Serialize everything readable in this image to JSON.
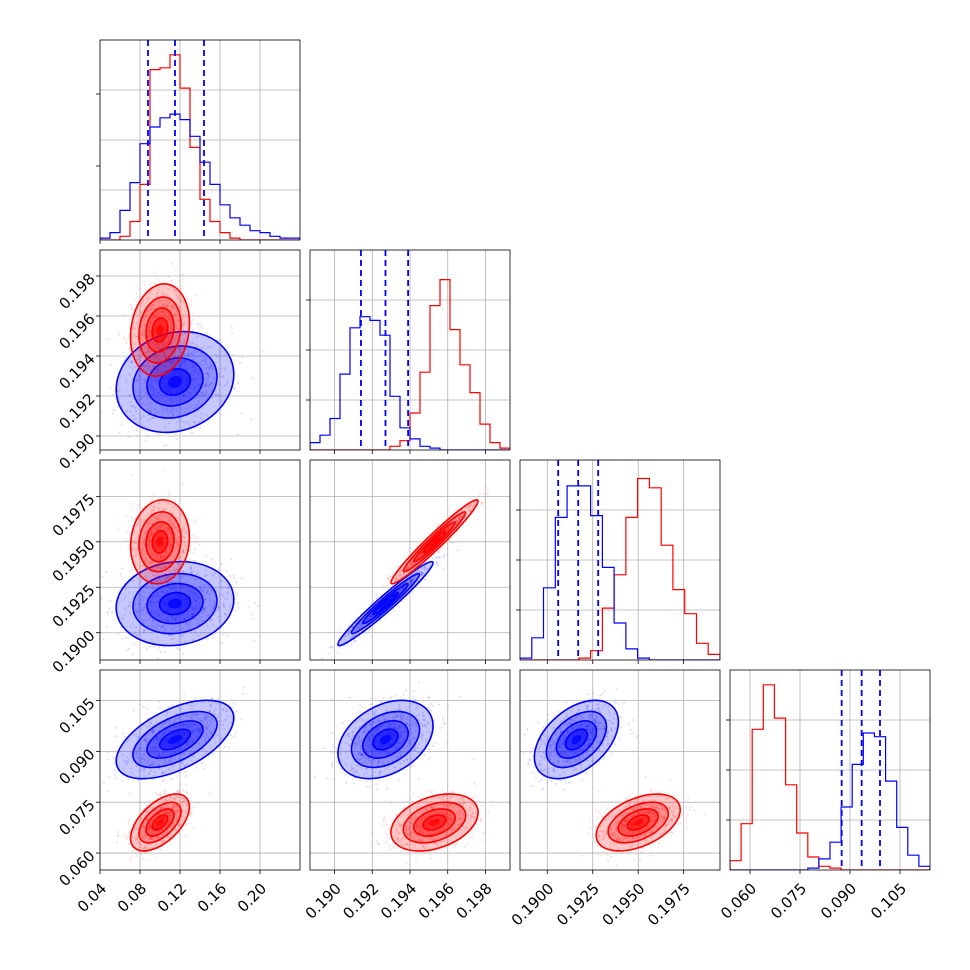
{
  "colors": {
    "series_a": "#ff0000",
    "series_b": "#0000ff",
    "grid": "#b0b0b0",
    "frame": "#000000"
  },
  "chart_data": {
    "type": "corner",
    "grid": true,
    "parameters": [
      {
        "xlim": [
          0.04,
          0.24
        ],
        "ylim": null,
        "ticks": [
          0.04,
          0.08,
          0.12,
          0.16,
          0.2
        ],
        "tick_labels": [
          "0.04",
          "0.08",
          "0.12",
          "0.16",
          "0.20"
        ]
      },
      {
        "xlim": [
          0.1887,
          0.1993
        ],
        "ylim": [
          0.1893,
          0.1993
        ],
        "ticks": [
          0.19,
          0.192,
          0.194,
          0.196,
          0.198
        ],
        "tick_labels": [
          "0.190",
          "0.192",
          "0.194",
          "0.196",
          "0.198"
        ]
      },
      {
        "xlim": [
          0.1885,
          0.1995
        ],
        "ylim": [
          0.1885,
          0.1995
        ],
        "ticks": [
          0.19,
          0.1925,
          0.195,
          0.1975
        ],
        "tick_labels": [
          "0.1900",
          "0.1925",
          "0.1950",
          "0.1975"
        ]
      },
      {
        "xlim": [
          0.054,
          0.114
        ],
        "ylim": [
          0.055,
          0.114
        ],
        "ticks": [
          0.06,
          0.075,
          0.09,
          0.105
        ],
        "tick_labels": [
          "0.060",
          "0.075",
          "0.090",
          "0.105"
        ]
      }
    ],
    "series": [
      {
        "color": "#0000ff",
        "mean": [
          0.115,
          0.1927,
          0.1916,
          0.0935
        ],
        "sigma": [
          0.028,
          0.0012,
          0.0011,
          0.0055
        ],
        "quantiles": [
          [
            0.088,
            0.115,
            0.144
          ],
          [
            0.1914,
            0.1927,
            0.1939
          ],
          [
            0.1906,
            0.1917,
            0.1928
          ],
          [
            0.0875,
            0.0935,
            0.099
          ]
        ]
      },
      {
        "color": "#ff0000",
        "mean": [
          0.1,
          0.1953,
          0.195,
          0.069
        ],
        "sigma": [
          0.014,
          0.0011,
          0.0011,
          0.004
        ]
      }
    ],
    "histograms": {
      "0": {
        "red": [
          0,
          0,
          0.02,
          0.1,
          0.3,
          0.92,
          0.93,
          1.0,
          0.82,
          0.5,
          0.22,
          0.1,
          0.04,
          0.01,
          0,
          0,
          0,
          0,
          0,
          0
        ],
        "blue": [
          0.01,
          0.04,
          0.16,
          0.31,
          0.52,
          0.61,
          0.66,
          0.68,
          0.65,
          0.56,
          0.42,
          0.3,
          0.19,
          0.12,
          0.08,
          0.05,
          0.04,
          0.02,
          0.01,
          0.01
        ]
      },
      "1": {
        "red": [
          0,
          0,
          0,
          0,
          0,
          0,
          0,
          0,
          0.02,
          0.05,
          0.2,
          0.42,
          0.78,
          0.92,
          0.65,
          0.46,
          0.31,
          0.14,
          0.04,
          0.01
        ],
        "blue": [
          0.04,
          0.08,
          0.17,
          0.41,
          0.66,
          0.72,
          0.7,
          0.62,
          0.29,
          0.12,
          0.06,
          0.02,
          0.01,
          0,
          0,
          0,
          0,
          0,
          0,
          0
        ]
      },
      "2": {
        "red": [
          0,
          0,
          0,
          0,
          0,
          0.01,
          0.05,
          0.28,
          0.46,
          0.77,
          0.98,
          0.93,
          0.62,
          0.38,
          0.25,
          0.09,
          0.03
        ],
        "blue": [
          0.01,
          0.12,
          0.39,
          0.77,
          0.94,
          0.94,
          0.78,
          0.5,
          0.2,
          0.06,
          0.01,
          0,
          0,
          0,
          0,
          0,
          0
        ]
      },
      "3": {
        "red": [
          0.05,
          0.25,
          0.76,
          1.0,
          0.82,
          0.46,
          0.2,
          0.07,
          0.02,
          0.01,
          0,
          0,
          0,
          0,
          0,
          0,
          0,
          0
        ],
        "blue": [
          0,
          0,
          0,
          0,
          0,
          0,
          0,
          0.01,
          0.06,
          0.15,
          0.34,
          0.57,
          0.74,
          0.72,
          0.48,
          0.23,
          0.08,
          0.02
        ]
      }
    },
    "scatter": [
      {
        "row": 1,
        "col": 0
      },
      {
        "row": 2,
        "col": 0
      },
      {
        "row": 2,
        "col": 1
      },
      {
        "row": 3,
        "col": 0
      },
      {
        "row": 3,
        "col": 1
      },
      {
        "row": 3,
        "col": 2
      }
    ]
  }
}
